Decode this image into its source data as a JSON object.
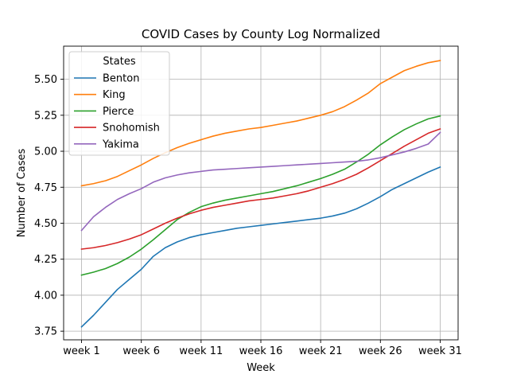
{
  "chart_data": {
    "type": "line",
    "title": "COVID Cases by County Log Normalized",
    "xlabel": "Week",
    "ylabel": "Number of Cases",
    "x": [
      1,
      2,
      3,
      4,
      5,
      6,
      7,
      8,
      9,
      10,
      11,
      12,
      13,
      14,
      15,
      16,
      17,
      18,
      19,
      20,
      21,
      22,
      23,
      24,
      25,
      26,
      27,
      28,
      29,
      30,
      31
    ],
    "xticks": [
      1,
      6,
      11,
      16,
      21,
      26,
      31
    ],
    "xtick_labels": [
      "week 1",
      "week 6",
      "week 11",
      "week 16",
      "week 21",
      "week 26",
      "week 31"
    ],
    "xlim": [
      -0.5,
      32.5
    ],
    "ylim": [
      3.69,
      5.73
    ],
    "yticks": [
      3.75,
      4.0,
      4.25,
      4.5,
      4.75,
      5.0,
      5.25,
      5.5
    ],
    "ytick_labels": [
      "3.75",
      "4.00",
      "4.25",
      "4.50",
      "4.75",
      "5.00",
      "5.25",
      "5.50"
    ],
    "grid": true,
    "legend": {
      "title": "States",
      "placement": "top-left"
    },
    "series": [
      {
        "name": "Benton",
        "color": "#1f77b4",
        "values": [
          3.78,
          3.86,
          3.95,
          4.04,
          4.11,
          4.18,
          4.27,
          4.33,
          4.37,
          4.4,
          4.42,
          4.435,
          4.45,
          4.465,
          4.475,
          4.485,
          4.495,
          4.505,
          4.515,
          4.525,
          4.535,
          4.55,
          4.57,
          4.6,
          4.64,
          4.685,
          4.735,
          4.775,
          4.815,
          4.855,
          4.89
        ]
      },
      {
        "name": "King",
        "color": "#ff7f0e",
        "values": [
          4.76,
          4.775,
          4.795,
          4.825,
          4.865,
          4.905,
          4.95,
          4.99,
          5.025,
          5.055,
          5.08,
          5.105,
          5.125,
          5.14,
          5.155,
          5.165,
          5.18,
          5.195,
          5.21,
          5.23,
          5.25,
          5.275,
          5.31,
          5.355,
          5.405,
          5.47,
          5.515,
          5.56,
          5.59,
          5.615,
          5.63
        ]
      },
      {
        "name": "Pierce",
        "color": "#2ca02c",
        "values": [
          4.14,
          4.16,
          4.185,
          4.22,
          4.265,
          4.32,
          4.385,
          4.455,
          4.525,
          4.575,
          4.615,
          4.64,
          4.66,
          4.675,
          4.69,
          4.705,
          4.72,
          4.74,
          4.76,
          4.785,
          4.81,
          4.84,
          4.875,
          4.925,
          4.98,
          5.045,
          5.1,
          5.15,
          5.19,
          5.225,
          5.245
        ]
      },
      {
        "name": "Snohomish",
        "color": "#d62728",
        "values": [
          4.32,
          4.33,
          4.345,
          4.365,
          4.39,
          4.42,
          4.46,
          4.5,
          4.535,
          4.565,
          4.59,
          4.61,
          4.625,
          4.64,
          4.655,
          4.665,
          4.675,
          4.69,
          4.705,
          4.725,
          4.75,
          4.775,
          4.805,
          4.84,
          4.885,
          4.935,
          4.985,
          5.035,
          5.08,
          5.125,
          5.155
        ]
      },
      {
        "name": "Yakima",
        "color": "#9467bd",
        "values": [
          4.45,
          4.545,
          4.61,
          4.665,
          4.705,
          4.74,
          4.785,
          4.815,
          4.835,
          4.85,
          4.86,
          4.87,
          4.875,
          4.88,
          4.885,
          4.89,
          4.895,
          4.9,
          4.905,
          4.91,
          4.915,
          4.92,
          4.925,
          4.93,
          4.94,
          4.955,
          4.975,
          4.995,
          5.02,
          5.05,
          5.13
        ]
      }
    ]
  }
}
